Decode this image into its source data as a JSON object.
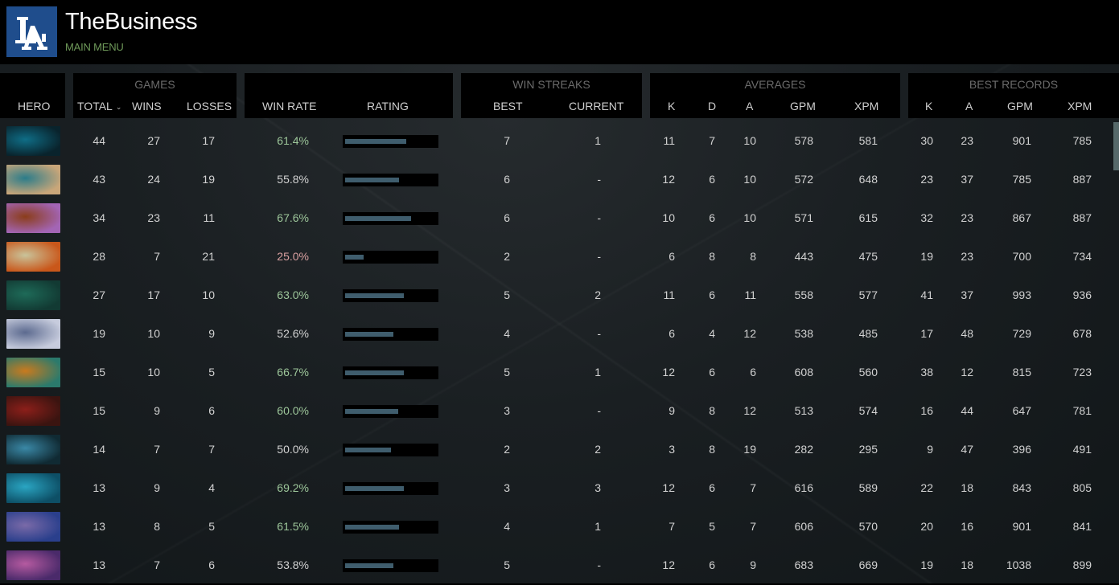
{
  "header": {
    "profile_name": "TheBusiness",
    "main_menu_label": "MAIN MENU",
    "logo_icon": "la-monogram-logo",
    "logo_color": "#1f4d8c"
  },
  "table": {
    "groups": {
      "games": "GAMES",
      "win_streaks": "WIN STREAKS",
      "averages": "AVERAGES",
      "best_records": "BEST RECORDS"
    },
    "columns": {
      "hero": "HERO",
      "total": "TOTAL",
      "wins": "WINS",
      "losses": "LOSSES",
      "win_rate": "WIN RATE",
      "rating": "RATING",
      "best": "BEST",
      "current": "CURRENT",
      "avg_k": "K",
      "avg_d": "D",
      "avg_a": "A",
      "avg_gpm": "GPM",
      "avg_xpm": "XPM",
      "best_k": "K",
      "best_a": "A",
      "best_gpm": "GPM",
      "best_xpm": "XPM"
    },
    "sort_indicator": "⌄",
    "colors": {
      "win_rate_good": "#9dc69a",
      "win_rate_bad": "#d9a0a0",
      "rating_bar": "#3f5d6d"
    },
    "rows": [
      {
        "hero": "phantom-assassin",
        "p1": "#0f6d86",
        "p2": "#09232c",
        "total": "44",
        "wins": "27",
        "losses": "17",
        "win_rate": "61.4%",
        "wr_class": "good",
        "rating_pct": 67,
        "best": "7",
        "current": "1",
        "k": "11",
        "d": "7",
        "a": "10",
        "gpm": "578",
        "xpm": "581",
        "bk": "30",
        "ba": "23",
        "bgpm": "901",
        "bxpm": "785"
      },
      {
        "hero": "slark",
        "p1": "#2b7c8a",
        "p2": "#c9a679",
        "total": "43",
        "wins": "24",
        "losses": "19",
        "win_rate": "55.8%",
        "wr_class": "neutral",
        "rating_pct": 59,
        "best": "6",
        "current": "-",
        "k": "12",
        "d": "6",
        "a": "10",
        "gpm": "572",
        "xpm": "648",
        "bk": "23",
        "ba": "37",
        "bgpm": "785",
        "bxpm": "887"
      },
      {
        "hero": "bounty-hunter",
        "p1": "#8b3d1a",
        "p2": "#a365b5",
        "total": "34",
        "wins": "23",
        "losses": "11",
        "win_rate": "67.6%",
        "wr_class": "good",
        "rating_pct": 73,
        "best": "6",
        "current": "-",
        "k": "10",
        "d": "6",
        "a": "10",
        "gpm": "571",
        "xpm": "615",
        "bk": "32",
        "ba": "23",
        "bgpm": "867",
        "bxpm": "887"
      },
      {
        "hero": "riki",
        "p1": "#c9c39a",
        "p2": "#c9571a",
        "total": "28",
        "wins": "7",
        "losses": "21",
        "win_rate": "25.0%",
        "wr_class": "bad",
        "rating_pct": 20,
        "best": "2",
        "current": "-",
        "k": "6",
        "d": "8",
        "a": "8",
        "gpm": "443",
        "xpm": "475",
        "bk": "19",
        "ba": "23",
        "bgpm": "700",
        "bxpm": "734"
      },
      {
        "hero": "venomancer",
        "p1": "#1e6a58",
        "p2": "#123a33",
        "total": "27",
        "wins": "17",
        "losses": "10",
        "win_rate": "63.0%",
        "wr_class": "good",
        "rating_pct": 65,
        "best": "5",
        "current": "2",
        "k": "11",
        "d": "6",
        "a": "11",
        "gpm": "558",
        "xpm": "577",
        "bk": "41",
        "ba": "37",
        "bgpm": "993",
        "bxpm": "936"
      },
      {
        "hero": "drow-ranger",
        "p1": "#5c6a8f",
        "p2": "#c7ccdd",
        "total": "19",
        "wins": "10",
        "losses": "9",
        "win_rate": "52.6%",
        "wr_class": "neutral",
        "rating_pct": 53,
        "best": "4",
        "current": "-",
        "k": "6",
        "d": "4",
        "a": "12",
        "gpm": "538",
        "xpm": "485",
        "bk": "17",
        "ba": "48",
        "bgpm": "729",
        "bxpm": "678"
      },
      {
        "hero": "huskar",
        "p1": "#c97a1e",
        "p2": "#2b7a6c",
        "total": "15",
        "wins": "10",
        "losses": "5",
        "win_rate": "66.7%",
        "wr_class": "good",
        "rating_pct": 65,
        "best": "5",
        "current": "1",
        "k": "12",
        "d": "6",
        "a": "6",
        "gpm": "608",
        "xpm": "560",
        "bk": "38",
        "ba": "12",
        "bgpm": "815",
        "bxpm": "723"
      },
      {
        "hero": "bloodseeker",
        "p1": "#8c1f1a",
        "p2": "#3a1410",
        "total": "15",
        "wins": "9",
        "losses": "6",
        "win_rate": "60.0%",
        "wr_class": "good",
        "rating_pct": 58,
        "best": "3",
        "current": "-",
        "k": "9",
        "d": "8",
        "a": "12",
        "gpm": "513",
        "xpm": "574",
        "bk": "16",
        "ba": "44",
        "bgpm": "647",
        "bxpm": "781"
      },
      {
        "hero": "spirit-breaker",
        "p1": "#3a88a6",
        "p2": "#102a33",
        "total": "14",
        "wins": "7",
        "losses": "7",
        "win_rate": "50.0%",
        "wr_class": "neutral",
        "rating_pct": 50,
        "best": "2",
        "current": "2",
        "k": "3",
        "d": "8",
        "a": "19",
        "gpm": "282",
        "xpm": "295",
        "bk": "9",
        "ba": "47",
        "bgpm": "396",
        "bxpm": "491"
      },
      {
        "hero": "morphling",
        "p1": "#2aa5c2",
        "p2": "#0d4f66",
        "total": "13",
        "wins": "9",
        "losses": "4",
        "win_rate": "69.2%",
        "wr_class": "good",
        "rating_pct": 65,
        "best": "3",
        "current": "3",
        "k": "12",
        "d": "6",
        "a": "7",
        "gpm": "616",
        "xpm": "589",
        "bk": "22",
        "ba": "18",
        "bgpm": "843",
        "bxpm": "805"
      },
      {
        "hero": "luna",
        "p1": "#7a6aa8",
        "p2": "#2a3f8c",
        "total": "13",
        "wins": "8",
        "losses": "5",
        "win_rate": "61.5%",
        "wr_class": "good",
        "rating_pct": 59,
        "best": "4",
        "current": "1",
        "k": "7",
        "d": "5",
        "a": "7",
        "gpm": "606",
        "xpm": "570",
        "bk": "20",
        "ba": "16",
        "bgpm": "901",
        "bxpm": "841"
      },
      {
        "hero": "templar-assassin",
        "p1": "#b55aa0",
        "p2": "#4a2a6a",
        "total": "13",
        "wins": "7",
        "losses": "6",
        "win_rate": "53.8%",
        "wr_class": "neutral",
        "rating_pct": 53,
        "best": "5",
        "current": "-",
        "k": "12",
        "d": "6",
        "a": "9",
        "gpm": "683",
        "xpm": "669",
        "bk": "19",
        "ba": "18",
        "bgpm": "1038",
        "bxpm": "899"
      }
    ]
  }
}
